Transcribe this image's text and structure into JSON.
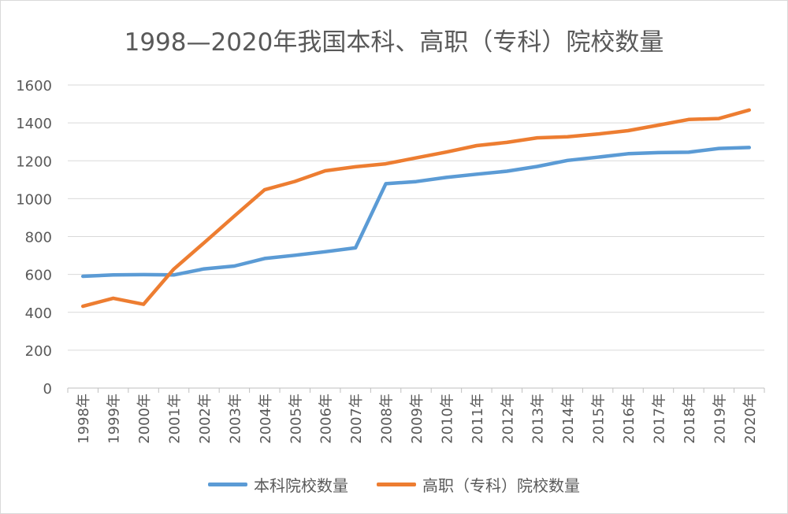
{
  "chart_data": {
    "type": "line",
    "title": "1998—2020年我国本科、高职（专科）院校数量",
    "categories": [
      "1998年",
      "1999年",
      "2000年",
      "2001年",
      "2002年",
      "2003年",
      "2004年",
      "2005年",
      "2006年",
      "2007年",
      "2008年",
      "2009年",
      "2010年",
      "2011年",
      "2012年",
      "2013年",
      "2014年",
      "2015年",
      "2016年",
      "2017年",
      "2018年",
      "2019年",
      "2020年"
    ],
    "yticks": [
      "0",
      "200",
      "400",
      "600",
      "800",
      "1000",
      "1200",
      "1400",
      "1600"
    ],
    "ylim": [
      0,
      1600
    ],
    "grid": true,
    "legend_position": "bottom",
    "series": [
      {
        "name": "本科院校数量",
        "color": "#5B9BD5",
        "values": [
          590,
          597,
          599,
          597,
          629,
          644,
          684,
          701,
          720,
          740,
          1079,
          1090,
          1112,
          1129,
          1145,
          1170,
          1202,
          1219,
          1237,
          1243,
          1245,
          1265,
          1270
        ]
      },
      {
        "name": "高职（专科）院校数量",
        "color": "#ED7D31",
        "values": [
          432,
          474,
          442,
          628,
          767,
          908,
          1047,
          1091,
          1147,
          1168,
          1184,
          1215,
          1246,
          1280,
          1297,
          1321,
          1327,
          1341,
          1359,
          1388,
          1418,
          1423,
          1468
        ]
      }
    ]
  }
}
